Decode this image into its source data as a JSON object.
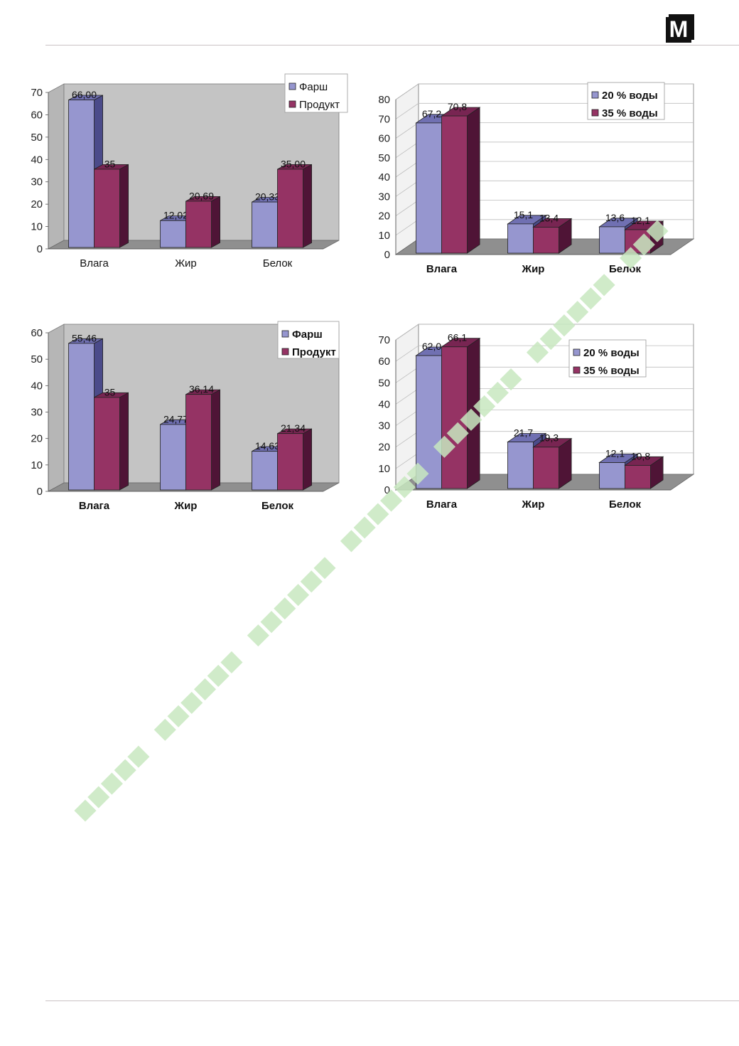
{
  "logo": {
    "letter": "M"
  },
  "colors": {
    "series1_front": "#9696cf",
    "series1_top": "#7070b2",
    "series1_side": "#4b4b8a",
    "series2_front": "#953364",
    "series2_top": "#782552",
    "series2_side": "#4f1436",
    "panel_gray": "#c4c4c4",
    "floor_gray": "#8f8f8f",
    "watermark": "#c8e8c0"
  },
  "chart_data": [
    {
      "type": "bar",
      "categories": [
        "Влага",
        "Жир",
        "Белок"
      ],
      "series": [
        {
          "name": "Фарш",
          "values": [
            66.0,
            12.02,
            20.33
          ],
          "labels": [
            "66,00",
            "12,02",
            "20,33"
          ]
        },
        {
          "name": "Продукт",
          "values": [
            35,
            20.69,
            35.0
          ],
          "labels": [
            "35",
            "20,69",
            "35,00"
          ]
        }
      ],
      "yticks": [
        "0",
        "10",
        "20",
        "30",
        "40",
        "50",
        "60",
        "70"
      ],
      "ylim": [
        0,
        70
      ],
      "legend_position": "top-right",
      "background": "gray",
      "grid": false
    },
    {
      "type": "bar",
      "categories": [
        "Влага",
        "Жир",
        "Белок"
      ],
      "series": [
        {
          "name": "20 % воды",
          "values": [
            67.2,
            15.1,
            13.6
          ],
          "labels": [
            "67,2",
            "15,1",
            "13,6"
          ]
        },
        {
          "name": "35 % воды",
          "values": [
            70.8,
            13.4,
            12.1
          ],
          "labels": [
            "70,8",
            "13,4",
            "12,1"
          ]
        }
      ],
      "yticks": [
        "0",
        "10",
        "20",
        "30",
        "40",
        "50",
        "60",
        "70",
        "80"
      ],
      "ylim": [
        0,
        80
      ],
      "legend_position": "top-right",
      "background": "white",
      "grid": true
    },
    {
      "type": "bar",
      "categories": [
        "Влага",
        "Жир",
        "Белок"
      ],
      "series": [
        {
          "name": "Фарш",
          "values": [
            55.46,
            24.77,
            14.63
          ],
          "labels": [
            "55,46",
            "24,77",
            "14,63"
          ]
        },
        {
          "name": "Продукт",
          "values": [
            35,
            36.14,
            21.34
          ],
          "labels": [
            "35",
            "36,14",
            "21,34"
          ]
        }
      ],
      "yticks": [
        "0",
        "10",
        "20",
        "30",
        "40",
        "50",
        "60"
      ],
      "ylim": [
        0,
        60
      ],
      "legend_position": "top-right",
      "background": "gray",
      "grid": false
    },
    {
      "type": "bar",
      "categories": [
        "Влага",
        "Жир",
        "Белок"
      ],
      "series": [
        {
          "name": "20 % воды",
          "values": [
            62.0,
            21.7,
            12.1
          ],
          "labels": [
            "62,0",
            "21,7",
            "12,1"
          ]
        },
        {
          "name": "35 % воды",
          "values": [
            66.1,
            19.3,
            10.8
          ],
          "labels": [
            "66,1",
            "19,3",
            "10,8"
          ]
        }
      ],
      "yticks": [
        "0",
        "10",
        "20",
        "30",
        "40",
        "50",
        "60",
        "70"
      ],
      "ylim": [
        0,
        70
      ],
      "legend_position": "top-right",
      "background": "white",
      "grid": true
    }
  ]
}
